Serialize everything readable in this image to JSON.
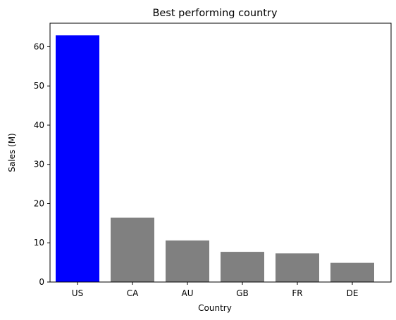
{
  "chart_data": {
    "type": "bar",
    "title": "Best performing country",
    "xlabel": "Country",
    "ylabel": "Sales (M)",
    "categories": [
      "US",
      "CA",
      "AU",
      "GB",
      "FR",
      "DE"
    ],
    "values": [
      62.9,
      16.4,
      10.6,
      7.7,
      7.3,
      4.9
    ],
    "ylim": [
      0,
      66
    ],
    "yticks": [
      0,
      10,
      20,
      30,
      40,
      50,
      60
    ],
    "grid": false,
    "legend": "none",
    "colors": {
      "highlight": "#0000ff",
      "default": "#808080",
      "axis": "#000000"
    },
    "highlight_category": "US"
  }
}
